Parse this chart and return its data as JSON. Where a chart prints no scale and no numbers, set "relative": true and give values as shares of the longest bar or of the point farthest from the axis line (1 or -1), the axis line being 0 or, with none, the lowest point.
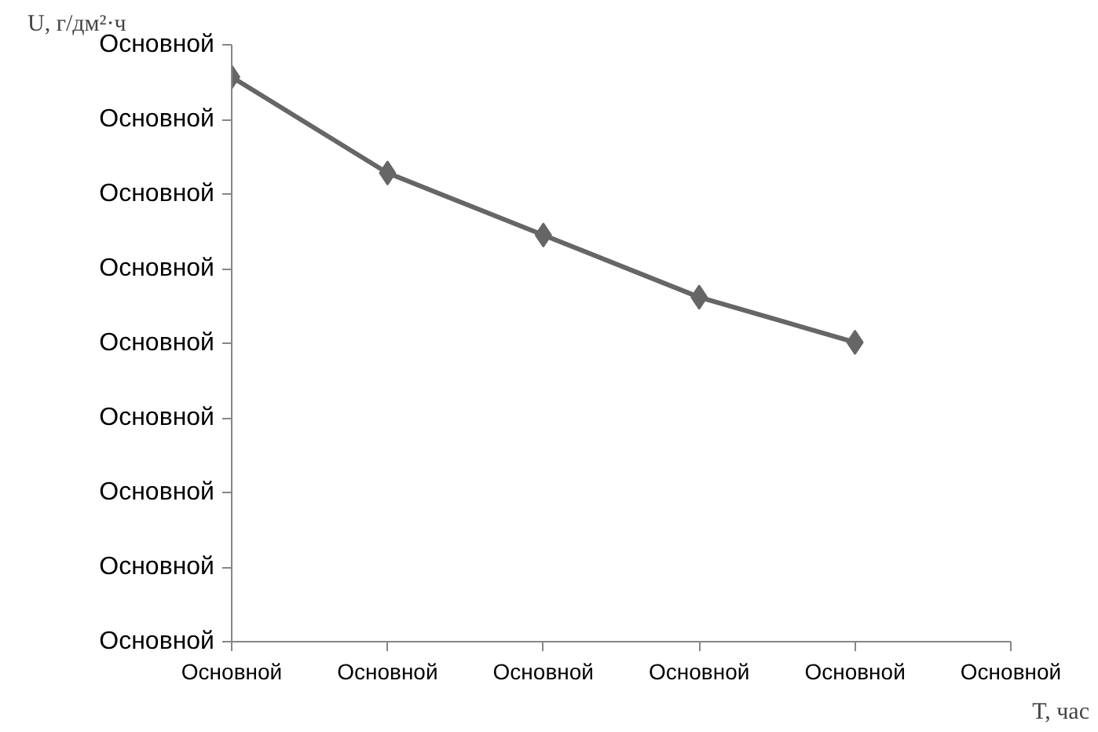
{
  "chart_data": {
    "type": "line",
    "ylabel": "U, г/дм²·ч",
    "xlabel": "T, час",
    "categories": [
      "Основной",
      "Основной",
      "Основной",
      "Основной",
      "Основной",
      "Основной"
    ],
    "y_categories": [
      "Основной",
      "Основной",
      "Основной",
      "Основной",
      "Основной",
      "Основной",
      "Основной",
      "Основной",
      "Основной"
    ],
    "series": [
      {
        "color": "#666666",
        "values": [
          1,
          0.83,
          0.72,
          0.61,
          0.53,
          null
        ]
      }
    ],
    "relative": true,
    "marker": "diamond",
    "line_style": "solid"
  }
}
